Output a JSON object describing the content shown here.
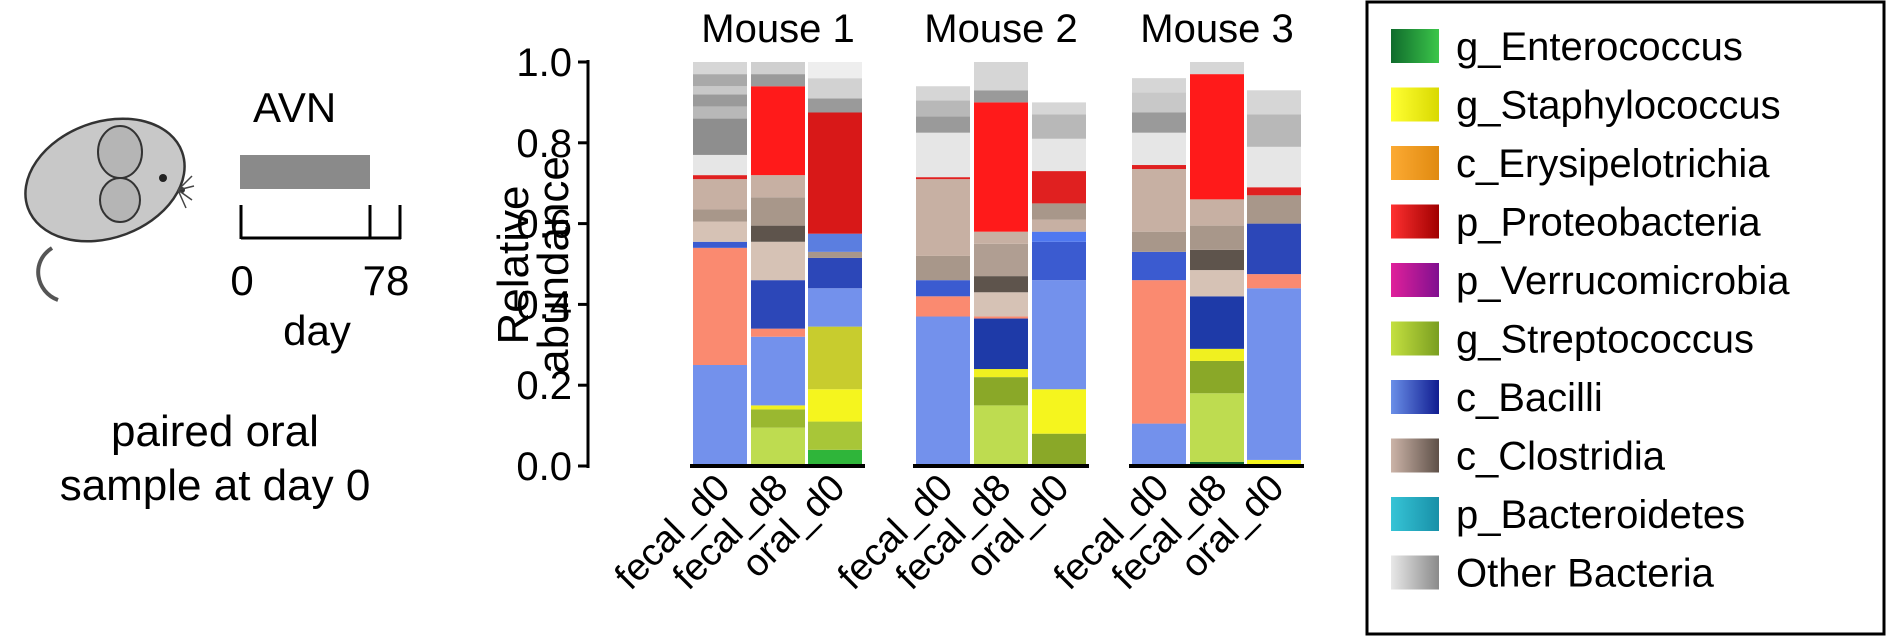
{
  "schematic": {
    "treatment_label": "AVN",
    "timeline_start": "0",
    "timeline_end": "78",
    "timeline_unit": "day",
    "note_line1": "paired oral",
    "note_line2": "sample at day 0",
    "bar_color": "#8a8a8a"
  },
  "chart_data": {
    "type": "bar",
    "stacked": true,
    "ylabel_line1": "Relative",
    "ylabel_line2": "abundance",
    "ylim": [
      0,
      1.0
    ],
    "yticks": [
      "0.0",
      "0.2",
      "0.4",
      "0.6",
      "0.8",
      "1.0"
    ],
    "groups": [
      "Mouse 1",
      "Mouse 2",
      "Mouse 3"
    ],
    "categories": [
      "fecal_d0",
      "fecal_d8",
      "oral_d0"
    ],
    "legend": [
      {
        "name": "g_Enterococcus",
        "from": "#0f6b2c",
        "to": "#3cc64a"
      },
      {
        "name": "g_Staphylococcus",
        "from": "#ffff33",
        "to": "#d9d900"
      },
      {
        "name": "c_Erysipelotrichia",
        "from": "#fcaa33",
        "to": "#e08a10"
      },
      {
        "name": "p_Proteobacteria",
        "from": "#ff3030",
        "to": "#a00000"
      },
      {
        "name": "p_Verrucomicrobia",
        "from": "#e0209a",
        "to": "#801090"
      },
      {
        "name": "g_Streptococcus",
        "from": "#c4e040",
        "to": "#7a9e20"
      },
      {
        "name": "c_Bacilli",
        "from": "#6a8fe8",
        "to": "#101c90"
      },
      {
        "name": "c_Clostridia",
        "from": "#ccb4a8",
        "to": "#5e5048"
      },
      {
        "name": "p_Bacteroidetes",
        "from": "#36c4d6",
        "to": "#1890a8"
      },
      {
        "name": "Other Bacteria",
        "from": "#e8e8e8",
        "to": "#8a8a8a"
      }
    ],
    "bars": [
      {
        "group": "Mouse 1",
        "label": "fecal_d0",
        "segments": [
          {
            "taxon": "c_Bacilli",
            "value": 0.25,
            "color": "#7391ec"
          },
          {
            "taxon": "Other Bacteria",
            "value": 0.29,
            "color": "#fa8a70"
          },
          {
            "taxon": "c_Bacilli",
            "value": 0.015,
            "color": "#3b5bd0"
          },
          {
            "taxon": "c_Clostridia",
            "value": 0.05,
            "color": "#d6c2b5"
          },
          {
            "taxon": "c_Clostridia",
            "value": 0.03,
            "color": "#a8978a"
          },
          {
            "taxon": "c_Clostridia",
            "value": 0.075,
            "color": "#c7b0a3"
          },
          {
            "taxon": "p_Proteobacteria",
            "value": 0.01,
            "color": "#e02020"
          },
          {
            "taxon": "Other Bacteria",
            "value": 0.05,
            "color": "#e6e6e6"
          },
          {
            "taxon": "Other Bacteria",
            "value": 0.09,
            "color": "#8e8e8e"
          },
          {
            "taxon": "Other Bacteria",
            "value": 0.03,
            "color": "#b8b8b8"
          },
          {
            "taxon": "Other Bacteria",
            "value": 0.03,
            "color": "#9a9a9a"
          },
          {
            "taxon": "Other Bacteria",
            "value": 0.02,
            "color": "#c8c8c8"
          },
          {
            "taxon": "Other Bacteria",
            "value": 0.03,
            "color": "#a9a9a9"
          },
          {
            "taxon": "Other Bacteria",
            "value": 0.03,
            "color": "#d6d6d6"
          }
        ]
      },
      {
        "group": "Mouse 1",
        "label": "fecal_d8",
        "segments": [
          {
            "taxon": "g_Streptococcus",
            "value": 0.095,
            "color": "#bedc50"
          },
          {
            "taxon": "g_Streptococcus",
            "value": 0.045,
            "color": "#9ab830"
          },
          {
            "taxon": "g_Staphylococcus",
            "value": 0.01,
            "color": "#f0f020"
          },
          {
            "taxon": "c_Bacilli",
            "value": 0.17,
            "color": "#7391ec"
          },
          {
            "taxon": "Other Bacteria",
            "value": 0.02,
            "color": "#fa8a70"
          },
          {
            "taxon": "c_Bacilli",
            "value": 0.12,
            "color": "#2c47b8"
          },
          {
            "taxon": "c_Clostridia",
            "value": 0.095,
            "color": "#d6c2b5"
          },
          {
            "taxon": "c_Clostridia",
            "value": 0.04,
            "color": "#5e544c"
          },
          {
            "taxon": "c_Clostridia",
            "value": 0.07,
            "color": "#a8978a"
          },
          {
            "taxon": "c_Clostridia",
            "value": 0.055,
            "color": "#c7b0a3"
          },
          {
            "taxon": "p_Proteobacteria",
            "value": 0.22,
            "color": "#ff1a1a"
          },
          {
            "taxon": "Other Bacteria",
            "value": 0.03,
            "color": "#9a9a9a"
          },
          {
            "taxon": "Other Bacteria",
            "value": 0.03,
            "color": "#cfcfcf"
          }
        ]
      },
      {
        "group": "Mouse 1",
        "label": "oral_d0",
        "segments": [
          {
            "taxon": "g_Enterococcus",
            "value": 0.04,
            "color": "#2fb53a"
          },
          {
            "taxon": "g_Streptococcus",
            "value": 0.07,
            "color": "#a8c638"
          },
          {
            "taxon": "g_Staphylococcus",
            "value": 0.08,
            "color": "#f5f51e"
          },
          {
            "taxon": "g_Streptococcus",
            "value": 0.155,
            "color": "#c8cc2e"
          },
          {
            "taxon": "c_Bacilli",
            "value": 0.095,
            "color": "#7391ec"
          },
          {
            "taxon": "c_Bacilli",
            "value": 0.075,
            "color": "#2c47b8"
          },
          {
            "taxon": "c_Clostridia",
            "value": 0.015,
            "color": "#a8978a"
          },
          {
            "taxon": "c_Bacilli",
            "value": 0.045,
            "color": "#5b7ee0"
          },
          {
            "taxon": "p_Proteobacteria",
            "value": 0.3,
            "color": "#d81818"
          },
          {
            "taxon": "Other Bacteria",
            "value": 0.035,
            "color": "#9a9a9a"
          },
          {
            "taxon": "Other Bacteria",
            "value": 0.05,
            "color": "#d2d2d2"
          },
          {
            "taxon": "Other Bacteria",
            "value": 0.04,
            "color": "#eeeeee"
          }
        ]
      },
      {
        "group": "Mouse 2",
        "label": "fecal_d0",
        "segments": [
          {
            "taxon": "c_Bacilli",
            "value": 0.37,
            "color": "#7391ec"
          },
          {
            "taxon": "Other Bacteria",
            "value": 0.05,
            "color": "#fa8a70"
          },
          {
            "taxon": "c_Bacilli",
            "value": 0.04,
            "color": "#3b5bd0"
          },
          {
            "taxon": "c_Clostridia",
            "value": 0.06,
            "color": "#a8978a"
          },
          {
            "taxon": "c_Clostridia",
            "value": 0.19,
            "color": "#c7b0a3"
          },
          {
            "taxon": "p_Proteobacteria",
            "value": 0.005,
            "color": "#e02020"
          },
          {
            "taxon": "Other Bacteria",
            "value": 0.11,
            "color": "#e6e6e6"
          },
          {
            "taxon": "Other Bacteria",
            "value": 0.04,
            "color": "#9a9a9a"
          },
          {
            "taxon": "Other Bacteria",
            "value": 0.04,
            "color": "#b8b8b8"
          },
          {
            "taxon": "Other Bacteria",
            "value": 0.035,
            "color": "#d6d6d6"
          }
        ]
      },
      {
        "group": "Mouse 2",
        "label": "fecal_d8",
        "segments": [
          {
            "taxon": "g_Streptococcus",
            "value": 0.15,
            "color": "#bedc50"
          },
          {
            "taxon": "g_Streptococcus",
            "value": 0.07,
            "color": "#8aa828"
          },
          {
            "taxon": "g_Staphylococcus",
            "value": 0.02,
            "color": "#f0f020"
          },
          {
            "taxon": "c_Bacilli",
            "value": 0.125,
            "color": "#1e3aa8"
          },
          {
            "taxon": "Other Bacteria",
            "value": 0.005,
            "color": "#fa8a70"
          },
          {
            "taxon": "c_Clostridia",
            "value": 0.06,
            "color": "#d6c2b5"
          },
          {
            "taxon": "c_Clostridia",
            "value": 0.04,
            "color": "#5e544c"
          },
          {
            "taxon": "c_Clostridia",
            "value": 0.08,
            "color": "#b09e92"
          },
          {
            "taxon": "c_Clostridia",
            "value": 0.03,
            "color": "#c7b0a3"
          },
          {
            "taxon": "p_Proteobacteria",
            "value": 0.32,
            "color": "#ff1a1a"
          },
          {
            "taxon": "Other Bacteria",
            "value": 0.03,
            "color": "#9a9a9a"
          },
          {
            "taxon": "Other Bacteria",
            "value": 0.07,
            "color": "#d6d6d6"
          }
        ]
      },
      {
        "group": "Mouse 2",
        "label": "oral_d0",
        "segments": [
          {
            "taxon": "g_Streptococcus",
            "value": 0.08,
            "color": "#8aa828"
          },
          {
            "taxon": "g_Staphylococcus",
            "value": 0.11,
            "color": "#f5f51e"
          },
          {
            "taxon": "c_Bacilli",
            "value": 0.27,
            "color": "#7391ec"
          },
          {
            "taxon": "c_Bacilli",
            "value": 0.095,
            "color": "#3b5bd0"
          },
          {
            "taxon": "c_Bacilli",
            "value": 0.025,
            "color": "#4f78f0"
          },
          {
            "taxon": "c_Clostridia",
            "value": 0.03,
            "color": "#c7b0a3"
          },
          {
            "taxon": "c_Clostridia",
            "value": 0.04,
            "color": "#a8978a"
          },
          {
            "taxon": "p_Proteobacteria",
            "value": 0.08,
            "color": "#e02020"
          },
          {
            "taxon": "Other Bacteria",
            "value": 0.08,
            "color": "#e6e6e6"
          },
          {
            "taxon": "Other Bacteria",
            "value": 0.06,
            "color": "#b8b8b8"
          },
          {
            "taxon": "Other Bacteria",
            "value": 0.03,
            "color": "#d6d6d6"
          }
        ]
      },
      {
        "group": "Mouse 3",
        "label": "fecal_d0",
        "segments": [
          {
            "taxon": "c_Bacilli",
            "value": 0.105,
            "color": "#7391ec"
          },
          {
            "taxon": "Other Bacteria",
            "value": 0.355,
            "color": "#fa8a70"
          },
          {
            "taxon": "c_Bacilli",
            "value": 0.07,
            "color": "#3b5bd0"
          },
          {
            "taxon": "c_Clostridia",
            "value": 0.05,
            "color": "#a8978a"
          },
          {
            "taxon": "c_Clostridia",
            "value": 0.155,
            "color": "#c7b0a3"
          },
          {
            "taxon": "p_Proteobacteria",
            "value": 0.01,
            "color": "#e02020"
          },
          {
            "taxon": "Other Bacteria",
            "value": 0.08,
            "color": "#e6e6e6"
          },
          {
            "taxon": "Other Bacteria",
            "value": 0.05,
            "color": "#9a9a9a"
          },
          {
            "taxon": "Other Bacteria",
            "value": 0.05,
            "color": "#c8c8c8"
          },
          {
            "taxon": "Other Bacteria",
            "value": 0.035,
            "color": "#d6d6d6"
          }
        ]
      },
      {
        "group": "Mouse 3",
        "label": "fecal_d8",
        "segments": [
          {
            "taxon": "g_Enterococcus",
            "value": 0.01,
            "color": "#0f6b2c"
          },
          {
            "taxon": "g_Streptococcus",
            "value": 0.17,
            "color": "#bedc50"
          },
          {
            "taxon": "g_Streptococcus",
            "value": 0.08,
            "color": "#8aa828"
          },
          {
            "taxon": "g_Staphylococcus",
            "value": 0.03,
            "color": "#f0f020"
          },
          {
            "taxon": "c_Bacilli",
            "value": 0.13,
            "color": "#1e3aa8"
          },
          {
            "taxon": "c_Clostridia",
            "value": 0.065,
            "color": "#d6c2b5"
          },
          {
            "taxon": "c_Clostridia",
            "value": 0.05,
            "color": "#5e544c"
          },
          {
            "taxon": "c_Clostridia",
            "value": 0.06,
            "color": "#a8978a"
          },
          {
            "taxon": "c_Clostridia",
            "value": 0.065,
            "color": "#c7b0a3"
          },
          {
            "taxon": "p_Proteobacteria",
            "value": 0.31,
            "color": "#ff1a1a"
          },
          {
            "taxon": "Other Bacteria",
            "value": 0.03,
            "color": "#d6d6d6"
          }
        ]
      },
      {
        "group": "Mouse 3",
        "label": "oral_d0",
        "segments": [
          {
            "taxon": "g_Staphylococcus",
            "value": 0.015,
            "color": "#f5f51e"
          },
          {
            "taxon": "c_Bacilli",
            "value": 0.425,
            "color": "#7391ec"
          },
          {
            "taxon": "Other Bacteria",
            "value": 0.035,
            "color": "#fa8a70"
          },
          {
            "taxon": "c_Bacilli",
            "value": 0.125,
            "color": "#2c47b8"
          },
          {
            "taxon": "c_Clostridia",
            "value": 0.07,
            "color": "#a8978a"
          },
          {
            "taxon": "p_Proteobacteria",
            "value": 0.02,
            "color": "#e02020"
          },
          {
            "taxon": "Other Bacteria",
            "value": 0.1,
            "color": "#e6e6e6"
          },
          {
            "taxon": "Other Bacteria",
            "value": 0.08,
            "color": "#b8b8b8"
          },
          {
            "taxon": "Other Bacteria",
            "value": 0.06,
            "color": "#d6d6d6"
          }
        ]
      }
    ]
  }
}
